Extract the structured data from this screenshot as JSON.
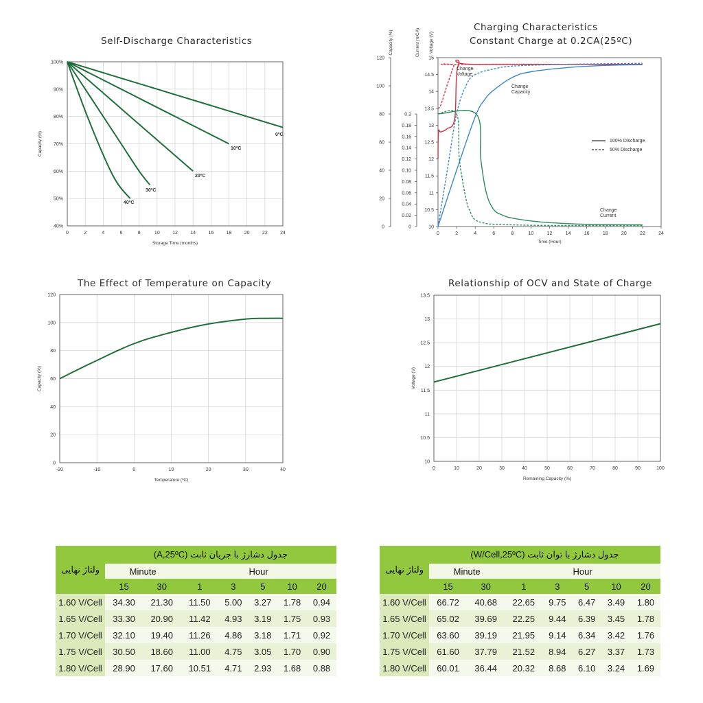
{
  "charts_titles": {
    "self_discharge": "Self-Discharge Characteristics",
    "charging_line1": "Charging Characteristics",
    "charging_line2": "Constant Charge at 0.2CA(25ºC)",
    "temperature": "The Effect of Temperature on Capacity",
    "ocv": "Relationship of OCV and State of Charge"
  },
  "chart_data": [
    {
      "id": "self_discharge",
      "type": "line",
      "title": "Self-Discharge Characteristics",
      "xlabel": "Storage Time (months)",
      "ylabel": "Capacity (%)",
      "xlim": [
        0,
        24
      ],
      "ylim": [
        40,
        100
      ],
      "xticks": [
        "0",
        "2",
        "4",
        "6",
        "8",
        "10",
        "12",
        "14",
        "16",
        "18",
        "20",
        "22",
        "24"
      ],
      "yticks": [
        "40%",
        "50%",
        "60%",
        "70%",
        "80%",
        "90%",
        "100%"
      ],
      "grid": true,
      "color": "#1e6e3a",
      "series": [
        {
          "name": "0ºC",
          "x": [
            0,
            6,
            12,
            18,
            24
          ],
          "y": [
            100,
            94,
            88,
            82,
            76
          ]
        },
        {
          "name": "10ºC",
          "x": [
            0,
            4.5,
            9,
            13.5,
            18
          ],
          "y": [
            100,
            92.5,
            85,
            77.5,
            70
          ]
        },
        {
          "name": "20ºC",
          "x": [
            0,
            3.5,
            7,
            10.5,
            14
          ],
          "y": [
            100,
            90,
            80,
            70,
            60
          ]
        },
        {
          "name": "30ºC",
          "x": [
            0,
            3,
            6,
            8,
            9.2
          ],
          "y": [
            100,
            85,
            70,
            60,
            55
          ]
        },
        {
          "name": "40ºC",
          "x": [
            0,
            2,
            4,
            5.5,
            7
          ],
          "y": [
            100,
            82,
            66,
            56,
            50
          ]
        }
      ]
    },
    {
      "id": "charging",
      "type": "line",
      "title": "Charging Characteristics Constant Charge at 0.2CA(25ºC)",
      "xlabel": "Time (Hour)",
      "xlim": [
        0,
        24
      ],
      "xticks": [
        "0",
        "2",
        "4",
        "6",
        "8",
        "10",
        "12",
        "14",
        "16",
        "18",
        "20",
        "22",
        "24"
      ],
      "axes": {
        "capacity": {
          "label": "Capacity (%)",
          "ticks": [
            "0",
            "20",
            "40",
            "60",
            "80",
            "100",
            "120"
          ],
          "range": [
            0,
            120
          ]
        },
        "current": {
          "label": "Current (mCA)",
          "ticks": [
            "0",
            "0.02",
            "0.04",
            "0.06",
            "0.08",
            "0.10",
            "0.12",
            "0.14",
            "0.16",
            "0.18",
            "0.2"
          ],
          "range": [
            0,
            0.2
          ]
        },
        "voltage": {
          "label": "Voltage (V)",
          "ticks": [
            "10",
            "10.5",
            "11",
            "11.5",
            "12",
            "12.5",
            "13",
            "13.5",
            "14",
            "14.5",
            "15"
          ],
          "range": [
            10,
            15
          ]
        }
      },
      "legend": {
        "solid": "100% Discharge",
        "dashed": "50% Discharge",
        "position": "right"
      },
      "annotations": {
        "voltage": "Change\nVoltage",
        "capacity": "Change\nCapacity",
        "current": "Change\nCurrent"
      },
      "colors": {
        "voltage": "#d12f3c",
        "capacity": "#3a86c8",
        "current": "#2e8b5a"
      },
      "series": [
        {
          "kind": "voltage",
          "style": "solid",
          "axis": "voltage",
          "x": [
            0,
            0.05,
            0.3,
            1,
            1.8,
            2.2,
            4,
            22
          ],
          "y": [
            12.0,
            12.8,
            12.8,
            12.9,
            13.2,
            14.8,
            14.8,
            14.8
          ]
        },
        {
          "kind": "voltage",
          "style": "dashed",
          "axis": "voltage",
          "x": [
            0,
            0.3,
            1,
            1.7,
            2,
            22
          ],
          "y": [
            13.5,
            13.6,
            14.2,
            14.75,
            14.8,
            14.8
          ]
        },
        {
          "kind": "capacity",
          "style": "solid",
          "axis": "capacity",
          "x": [
            0,
            2,
            4,
            5,
            6,
            8,
            10,
            14,
            18,
            22
          ],
          "y": [
            0,
            40,
            78,
            90,
            97,
            106,
            110,
            113,
            114.5,
            115
          ]
        },
        {
          "kind": "capacity",
          "style": "dashed",
          "axis": "capacity",
          "x": [
            0,
            1,
            2,
            3,
            4,
            6,
            8,
            12,
            16,
            22
          ],
          "y": [
            0,
            40,
            80,
            100,
            108,
            112,
            114,
            115,
            115.5,
            116
          ]
        },
        {
          "kind": "current",
          "style": "solid",
          "axis": "current",
          "x": [
            0,
            4.1,
            4.6,
            5.2,
            6,
            7,
            8,
            10,
            12,
            16,
            22
          ],
          "y": [
            0.2,
            0.2,
            0.12,
            0.06,
            0.03,
            0.02,
            0.015,
            0.01,
            0.007,
            0.004,
            0.003
          ]
        },
        {
          "kind": "current",
          "style": "dashed",
          "axis": "current",
          "x": [
            0,
            2,
            2.3,
            3,
            3.5,
            4,
            5,
            6,
            8,
            12,
            22
          ],
          "y": [
            0.2,
            0.2,
            0.12,
            0.05,
            0.025,
            0.012,
            0.006,
            0.004,
            0.003,
            0.002,
            0.002
          ]
        }
      ]
    },
    {
      "id": "temperature",
      "type": "line",
      "title": "The Effect of Temperature on Capacity",
      "xlabel": "Temperature (ºC)",
      "ylabel": "Capacity (%)",
      "xlim": [
        -20,
        40
      ],
      "ylim": [
        0,
        120
      ],
      "xticks": [
        "-20",
        "-10",
        "0",
        "10",
        "20",
        "30",
        "40"
      ],
      "yticks": [
        "0",
        "20",
        "40",
        "60",
        "80",
        "100",
        "120"
      ],
      "grid": true,
      "color": "#1e6e3a",
      "series": [
        {
          "x": [
            -20,
            -10,
            0,
            10,
            20,
            30,
            35,
            40
          ],
          "y": [
            60,
            73,
            85,
            93,
            99,
            102.5,
            103,
            103
          ]
        }
      ]
    },
    {
      "id": "ocv",
      "type": "line",
      "title": "Relationship of OCV and State of Charge",
      "xlabel": "Remaining Capacity (%)",
      "ylabel": "Voltage (V)",
      "xlim": [
        0,
        100
      ],
      "ylim": [
        10,
        13.5
      ],
      "xticks": [
        "0",
        "10",
        "20",
        "30",
        "40",
        "50",
        "60",
        "70",
        "80",
        "90",
        "100"
      ],
      "yticks": [
        "10",
        "10.5",
        "11",
        "11.5",
        "12",
        "12.5",
        "13",
        "13.5"
      ],
      "grid": true,
      "color": "#1e6e3a",
      "series": [
        {
          "x": [
            0,
            100
          ],
          "y": [
            11.67,
            12.9
          ]
        }
      ]
    }
  ],
  "tables": [
    {
      "id": "current_table",
      "title": "جدول دشارژ با جریان ثابت  (A,25ºC)",
      "volt_header": "ولتاژ نهایی",
      "group_minute": "Minute",
      "group_hour": "Hour",
      "columns": [
        "15",
        "30",
        "1",
        "3",
        "5",
        "10",
        "20"
      ],
      "rows": [
        {
          "label": "1.60 V/Cell",
          "values": [
            "34.30",
            "21.30",
            "11.50",
            "5.00",
            "3.27",
            "1.78",
            "0.94"
          ]
        },
        {
          "label": "1.65 V/Cell",
          "values": [
            "33.30",
            "20.90",
            "11.42",
            "4.93",
            "3.19",
            "1.75",
            "0.93"
          ]
        },
        {
          "label": "1.70 V/Cell",
          "values": [
            "32.10",
            "19.40",
            "11.26",
            "4.86",
            "3.18",
            "1.71",
            "0.92"
          ]
        },
        {
          "label": "1.75 V/Cell",
          "values": [
            "30.50",
            "18.60",
            "11.00",
            "4.75",
            "3.05",
            "1.70",
            "0.90"
          ]
        },
        {
          "label": "1.80 V/Cell",
          "values": [
            "28.90",
            "17.60",
            "10.51",
            "4.71",
            "2.93",
            "1.68",
            "0.88"
          ]
        }
      ]
    },
    {
      "id": "power_table",
      "title": "جدول دشارژ با توان ثابت  (W/Cell,25ºC)",
      "volt_header": "ولتاژ نهایی",
      "group_minute": "Minute",
      "group_hour": "Hour",
      "columns": [
        "15",
        "30",
        "1",
        "3",
        "5",
        "10",
        "20"
      ],
      "rows": [
        {
          "label": "1.60 V/Cell",
          "values": [
            "66.72",
            "40.68",
            "22.65",
            "9.75",
            "6.47",
            "3.49",
            "1.80"
          ]
        },
        {
          "label": "1.65 V/Cell",
          "values": [
            "65.02",
            "39.69",
            "22.25",
            "9.44",
            "6.39",
            "3.45",
            "1.78"
          ]
        },
        {
          "label": "1.70 V/Cell",
          "values": [
            "63.60",
            "39.19",
            "21.95",
            "9.14",
            "6.34",
            "3.42",
            "1.76"
          ]
        },
        {
          "label": "1.75 V/Cell",
          "values": [
            "61.60",
            "37.79",
            "21.52",
            "8.94",
            "6.27",
            "3.37",
            "1.73"
          ]
        },
        {
          "label": "1.80 V/Cell",
          "values": [
            "60.01",
            "36.44",
            "20.32",
            "8.68",
            "6.10",
            "3.24",
            "1.69"
          ]
        }
      ]
    }
  ]
}
